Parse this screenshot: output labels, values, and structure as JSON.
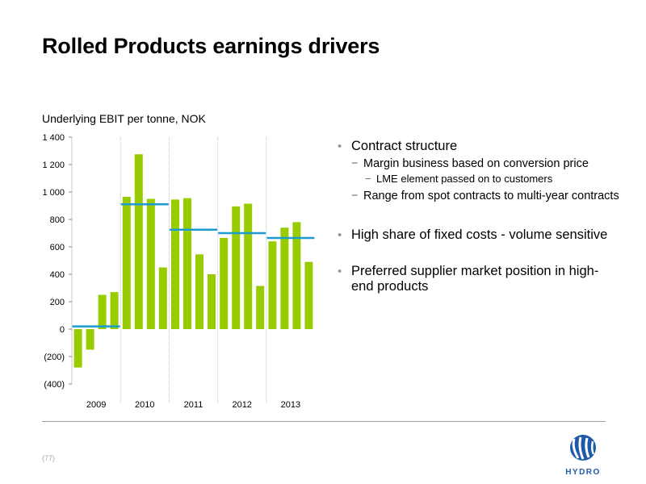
{
  "slide": {
    "title": "Rolled Products earnings drivers",
    "chart_title": "Underlying EBIT per tonne, NOK",
    "page_number": "(77)",
    "logo_text": "HYDRO"
  },
  "bullets": {
    "b1": "Contract structure",
    "b1_sub1": "Margin business based on conversion price",
    "b1_sub1_sub1": "LME element passed on to customers",
    "b1_sub2": "Range from spot contracts to multi-year contracts",
    "b2": "High share of fixed costs - volume sensitive",
    "b3": "Preferred supplier market position in high-end products"
  },
  "colors": {
    "bar": "#99cc00",
    "average_line": "#1a9cd2",
    "gridline": "#c8c8c8"
  },
  "chart_data": {
    "type": "bar",
    "title": "Underlying EBIT per tonne, NOK",
    "ylim": [
      -400,
      1400
    ],
    "yticks": [
      -400,
      -200,
      0,
      200,
      400,
      600,
      800,
      1000,
      1200,
      1400
    ],
    "ytick_labels": [
      "(400)",
      "(200)",
      "0",
      "200",
      "400",
      "600",
      "800",
      "1 000",
      "1 200",
      "1 400"
    ],
    "groups": [
      {
        "year": "2009",
        "values": [
          -280,
          -150,
          250,
          270
        ],
        "average": 20
      },
      {
        "year": "2010",
        "values": [
          965,
          1275,
          950,
          450
        ],
        "average": 910
      },
      {
        "year": "2011",
        "values": [
          945,
          955,
          545,
          400
        ],
        "average": 725
      },
      {
        "year": "2012",
        "values": [
          665,
          895,
          915,
          315
        ],
        "average": 700
      },
      {
        "year": "2013",
        "values": [
          640,
          740,
          780,
          490
        ],
        "average": 665
      }
    ]
  }
}
